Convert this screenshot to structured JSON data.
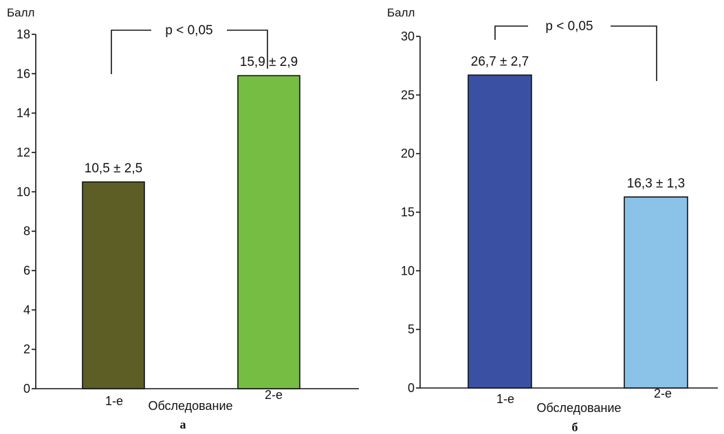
{
  "chart_data": [
    {
      "type": "bar",
      "panel_label": "а",
      "categories": [
        "1-е",
        "2-е"
      ],
      "values": [
        10.5,
        15.9
      ],
      "value_labels": [
        "10,5 ± 2,5",
        "15,9 ± 2,9"
      ],
      "errors": [
        2.5,
        2.9
      ],
      "colors": [
        "#5c5e26",
        "#76bd43"
      ],
      "xlabel": "Обследование",
      "ylabel": "Балл",
      "ylim": [
        0,
        18
      ],
      "yticks": [
        0,
        2,
        4,
        6,
        8,
        10,
        12,
        14,
        16,
        18
      ],
      "ytick_labels": [
        "0",
        "2",
        "4",
        "6",
        "8",
        "10",
        "12",
        "14",
        "16",
        "18"
      ],
      "significance": {
        "text": "p < 0,05",
        "between": [
          "1-е",
          "2-е"
        ]
      },
      "grid": false
    },
    {
      "type": "bar",
      "panel_label": "б",
      "categories": [
        "1-е",
        "2-е"
      ],
      "values": [
        26.7,
        16.3
      ],
      "value_labels": [
        "26,7 ± 2,7",
        "16,3 ± 1,3"
      ],
      "errors": [
        2.7,
        1.3
      ],
      "colors": [
        "#3a51a3",
        "#8ac2e8"
      ],
      "xlabel": "Обследование",
      "ylabel": "Балл",
      "ylim": [
        0,
        30
      ],
      "yticks": [
        0,
        5,
        10,
        15,
        20,
        25,
        30
      ],
      "ytick_labels": [
        "0",
        "5",
        "10",
        "15",
        "20",
        "25",
        "30"
      ],
      "significance": {
        "text": "p < 0,05",
        "between": [
          "1-е",
          "2-е"
        ]
      },
      "grid": false
    }
  ]
}
